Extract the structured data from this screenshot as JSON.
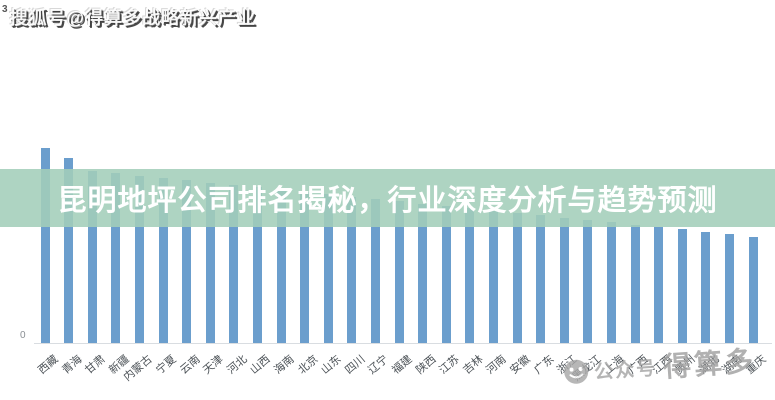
{
  "header": {
    "watermark_prefix": "3",
    "watermark_text": "搜狐号@得算多战略新兴产业"
  },
  "banner": {
    "title": "昆明地坪公司排名揭秘，行业深度分析与趋势预测",
    "background": "#aed4c2",
    "text_color": "#ffffff"
  },
  "chart_data": {
    "type": "bar",
    "title": "昆明地坪公司排名揭秘，行业深度分析与趋势预测",
    "xlabel": "",
    "ylabel": "",
    "y_axis_ticks": [
      "0"
    ],
    "grid": "off",
    "legend": "none",
    "bar_color": "#6b9ecd",
    "note": "values estimated from bar pixel heights; no numeric y-axis shown",
    "categories": [
      "西藏",
      "青海",
      "甘肃",
      "新疆",
      "内蒙古",
      "宁夏",
      "云南",
      "天津",
      "河北",
      "山西",
      "海南",
      "北京",
      "山东",
      "四川",
      "辽宁",
      "福建",
      "陕西",
      "江苏",
      "吉林",
      "河南",
      "安徽",
      "广东",
      "浙江",
      "黑龙江",
      "上海",
      "广西",
      "江西",
      "贵州",
      "湖北",
      "湖南",
      "重庆"
    ],
    "values": [
      195,
      185,
      172,
      170,
      167,
      165,
      163,
      160,
      158,
      156,
      153,
      151,
      149,
      146,
      144,
      142,
      139,
      137,
      135,
      132,
      130,
      128,
      125,
      123,
      121,
      118,
      116,
      114,
      111,
      109,
      106
    ]
  },
  "watermark_badge": {
    "icon": "smiley-face-icon",
    "text_small": "公众号",
    "text_large": "得算多",
    "color": "#a2a2a2"
  }
}
